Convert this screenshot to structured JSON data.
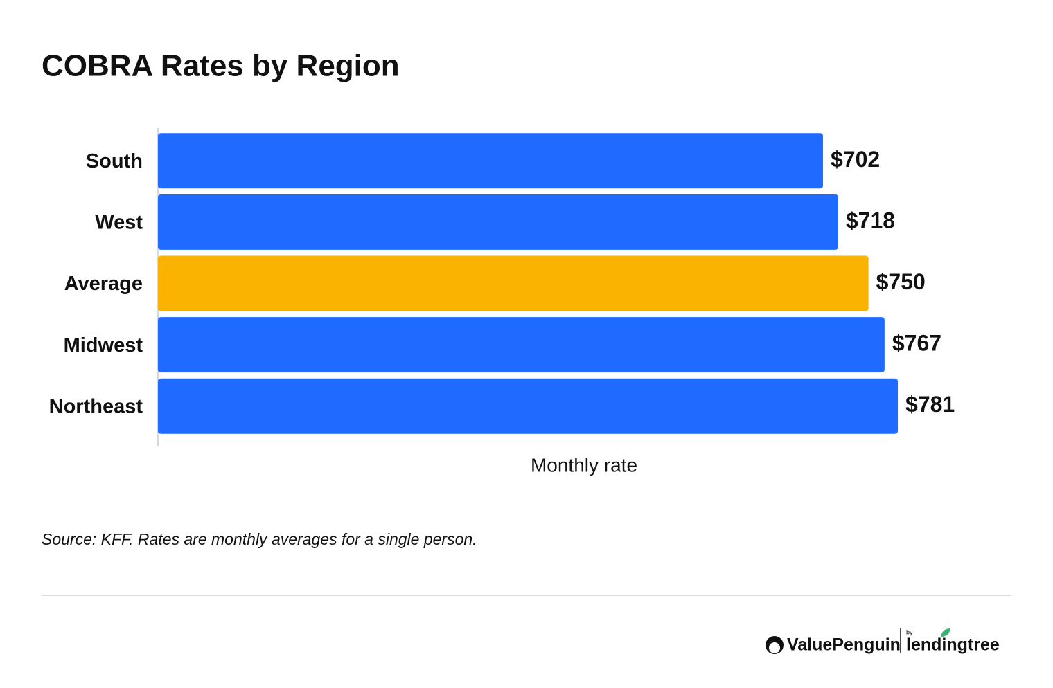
{
  "chart_data": {
    "type": "hbar",
    "title": "COBRA Rates by Region",
    "categories": [
      "South",
      "West",
      "Average",
      "Midwest",
      "Northeast"
    ],
    "values": [
      702,
      718,
      750,
      767,
      781
    ],
    "value_labels": [
      "$702",
      "$718",
      "$750",
      "$767",
      "$781"
    ],
    "colors": [
      "#206bff",
      "#206bff",
      "#f9b300",
      "#206bff",
      "#206bff"
    ],
    "xlim": [
      0,
      800
    ],
    "xlabel": "Monthly rate",
    "source": "Source: KFF. Rates are monthly averages for a single person."
  },
  "footer": {
    "brand": "ValuePenguin",
    "by": "by",
    "partner": "lendingtree"
  }
}
